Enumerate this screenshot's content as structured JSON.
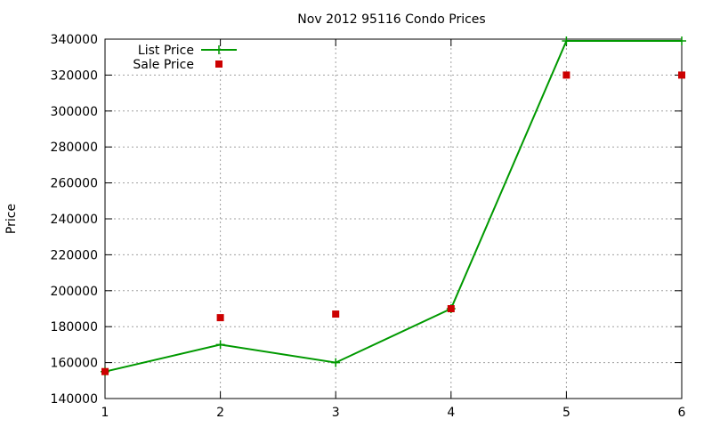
{
  "chart_data": {
    "type": "line",
    "title": "Nov 2012 95116 Condo Prices",
    "xlabel": "",
    "ylabel": "Price",
    "x": [
      1,
      2,
      3,
      4,
      5,
      6
    ],
    "xlim": [
      1,
      6
    ],
    "ylim": [
      140000,
      340000
    ],
    "x_ticks": [
      1,
      2,
      3,
      4,
      5,
      6
    ],
    "y_ticks": [
      140000,
      160000,
      180000,
      200000,
      220000,
      240000,
      260000,
      280000,
      300000,
      320000,
      340000
    ],
    "grid": true,
    "legend_position": "top-left",
    "series": [
      {
        "name": "List Price",
        "style": "linespoints",
        "marker": "plus",
        "color": "#009900",
        "values": [
          155000,
          170000,
          160000,
          190000,
          339000,
          339000
        ]
      },
      {
        "name": "Sale Price",
        "style": "points",
        "marker": "square",
        "color": "#cc0000",
        "values": [
          155000,
          185000,
          187000,
          190000,
          320000,
          320000
        ]
      }
    ]
  }
}
